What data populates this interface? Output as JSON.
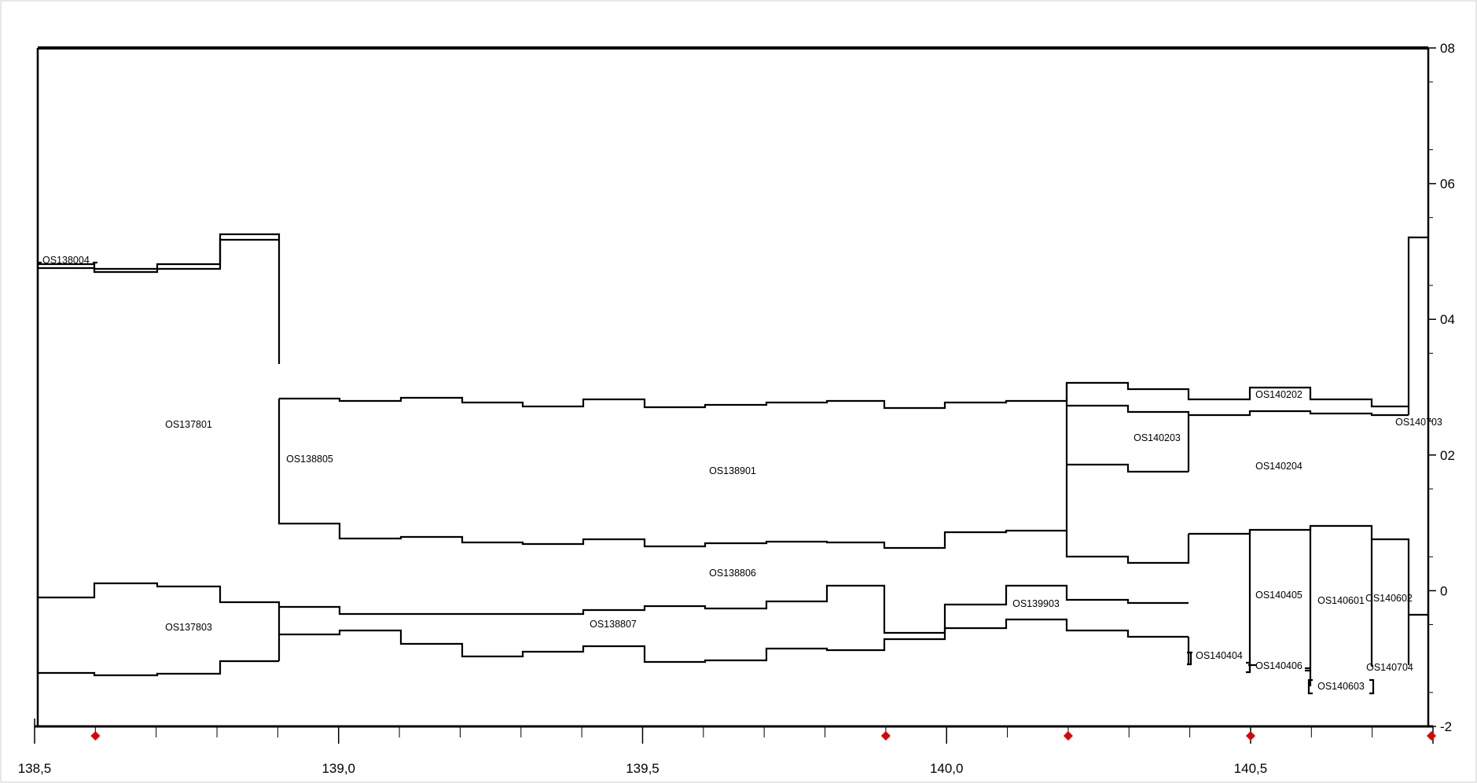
{
  "chart_data": {
    "type": "strip-log",
    "x_range": [
      138.5,
      140.8
    ],
    "y_range": [
      -2,
      8
    ],
    "x_ticks": [
      "138,5",
      "139,0",
      "139,5",
      "140,0",
      "140,5"
    ],
    "y_ticks": [
      "08",
      "06",
      "04",
      "02",
      "0",
      "-2"
    ],
    "markers_x": [
      138.6,
      139.9,
      140.2,
      140.5,
      140.8
    ],
    "labels": [
      "OS138004",
      "OS137801",
      "OS137803",
      "OS138805",
      "OS138901",
      "OS138806",
      "OS138807",
      "OS139903",
      "OS140203",
      "OS140202",
      "OS140204",
      "OS140703",
      "OS140405",
      "OS140601",
      "OS140602",
      "OS140404",
      "OS140406",
      "OS140603",
      "OS140704"
    ],
    "colors": {
      "lines": "#000000",
      "markers": "#e00000"
    }
  }
}
